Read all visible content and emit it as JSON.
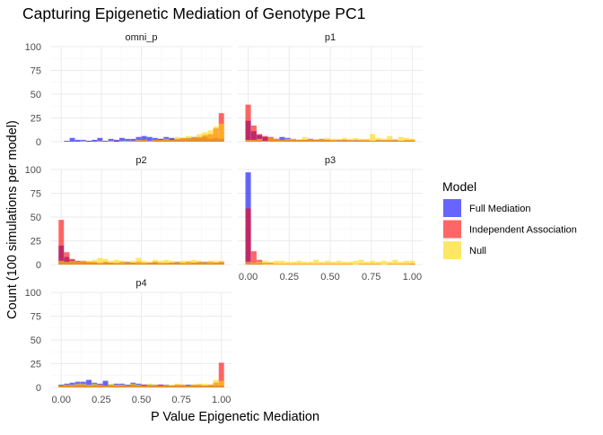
{
  "chart_data": {
    "type": "histogram",
    "title": "Capturing Epigenetic Mediation of Genotype PC1",
    "xlabel": "P Value Epigenetic Mediation",
    "ylabel": "Count (100 simulations per model)",
    "legend": {
      "title": "Model",
      "placement": "right"
    },
    "bin_width": 0.0333,
    "x_range": [
      0,
      1
    ],
    "ylim": [
      0,
      100
    ],
    "x_ticks": [
      "0.00",
      "0.25",
      "0.50",
      "0.75",
      "1.00"
    ],
    "y_ticks": [
      "0",
      "25",
      "50",
      "75",
      "100"
    ],
    "grid": true,
    "series": [
      {
        "name": "Full Mediation",
        "color": "#0000FF"
      },
      {
        "name": "Independent Association",
        "color": "#FF0000"
      },
      {
        "name": "Null",
        "color": "#FFD700"
      }
    ],
    "panels": [
      {
        "name": "omni_p",
        "counts": [
          [
            0,
            1,
            4,
            2,
            2,
            1,
            2,
            4,
            1,
            3,
            2,
            4,
            3,
            3,
            5,
            6,
            5,
            4,
            3,
            5,
            4,
            3,
            3,
            4,
            5,
            4,
            5,
            3,
            4,
            3
          ],
          [
            0,
            0,
            0,
            0,
            0,
            1,
            0,
            1,
            0,
            0,
            1,
            0,
            0,
            1,
            1,
            2,
            0,
            2,
            3,
            2,
            3,
            2,
            4,
            3,
            4,
            5,
            7,
            8,
            14,
            30
          ],
          [
            0,
            0,
            0,
            0,
            1,
            0,
            0,
            1,
            0,
            1,
            0,
            1,
            1,
            1,
            2,
            2,
            1,
            2,
            2,
            3,
            2,
            5,
            4,
            6,
            5,
            8,
            10,
            12,
            16,
            19
          ]
        ]
      },
      {
        "name": "p1",
        "counts": [
          [
            22,
            11,
            7,
            5,
            4,
            3,
            5,
            4,
            2,
            2,
            2,
            3,
            2,
            3,
            2,
            1,
            2,
            2,
            1,
            2,
            1,
            1,
            1,
            2,
            1,
            1,
            2,
            1,
            1,
            1
          ],
          [
            39,
            17,
            8,
            6,
            5,
            3,
            2,
            2,
            3,
            2,
            2,
            3,
            2,
            2,
            2,
            2,
            1,
            2,
            2,
            1,
            2,
            2,
            1,
            1,
            2,
            2,
            1,
            1,
            2,
            2
          ],
          [
            2,
            2,
            3,
            1,
            4,
            3,
            2,
            3,
            3,
            2,
            5,
            3,
            3,
            3,
            4,
            3,
            3,
            4,
            3,
            4,
            3,
            3,
            8,
            4,
            3,
            6,
            3,
            5,
            4,
            3
          ]
        ]
      },
      {
        "name": "p2",
        "counts": [
          [
            20,
            8,
            5,
            3,
            3,
            2,
            2,
            1,
            2,
            2,
            1,
            1,
            3,
            2,
            1,
            1,
            2,
            2,
            1,
            1,
            2,
            3,
            1,
            1,
            2,
            2,
            3,
            1,
            2,
            2
          ],
          [
            47,
            13,
            6,
            4,
            4,
            3,
            3,
            2,
            3,
            2,
            2,
            3,
            2,
            2,
            3,
            2,
            2,
            3,
            2,
            2,
            2,
            2,
            2,
            3,
            2,
            3,
            2,
            3,
            2,
            3
          ],
          [
            4,
            3,
            4,
            3,
            4,
            4,
            5,
            7,
            6,
            4,
            5,
            4,
            3,
            4,
            7,
            4,
            3,
            5,
            4,
            5,
            4,
            3,
            4,
            4,
            5,
            4,
            3,
            4,
            4,
            4
          ]
        ]
      },
      {
        "name": "p3",
        "counts": [
          [
            97,
            1,
            1,
            0,
            0,
            0,
            0,
            0,
            0,
            0,
            0,
            0,
            0,
            0,
            0,
            0,
            0,
            0,
            0,
            0,
            0,
            0,
            0,
            0,
            0,
            0,
            0,
            0,
            0,
            1
          ],
          [
            59,
            14,
            5,
            2,
            2,
            1,
            1,
            1,
            1,
            1,
            1,
            1,
            1,
            1,
            1,
            1,
            1,
            1,
            1,
            0,
            1,
            1,
            1,
            1,
            0,
            1,
            1,
            1,
            1,
            1
          ],
          [
            3,
            2,
            3,
            4,
            3,
            4,
            4,
            3,
            3,
            4,
            3,
            3,
            5,
            3,
            4,
            3,
            4,
            3,
            3,
            4,
            5,
            3,
            4,
            3,
            4,
            3,
            5,
            3,
            4,
            4
          ]
        ]
      },
      {
        "name": "p4",
        "counts": [
          [
            3,
            4,
            5,
            6,
            6,
            8,
            5,
            4,
            7,
            3,
            4,
            4,
            3,
            5,
            4,
            3,
            3,
            3,
            3,
            3,
            2,
            2,
            2,
            3,
            2,
            2,
            2,
            2,
            2,
            2
          ],
          [
            2,
            3,
            2,
            3,
            3,
            2,
            2,
            3,
            2,
            2,
            2,
            2,
            2,
            3,
            2,
            3,
            2,
            2,
            3,
            2,
            2,
            3,
            3,
            2,
            3,
            3,
            2,
            3,
            5,
            26
          ],
          [
            2,
            3,
            3,
            4,
            4,
            3,
            4,
            3,
            2,
            4,
            3,
            3,
            2,
            4,
            3,
            2,
            4,
            3,
            2,
            3,
            3,
            4,
            3,
            2,
            3,
            4,
            4,
            3,
            8,
            7
          ]
        ]
      }
    ]
  }
}
